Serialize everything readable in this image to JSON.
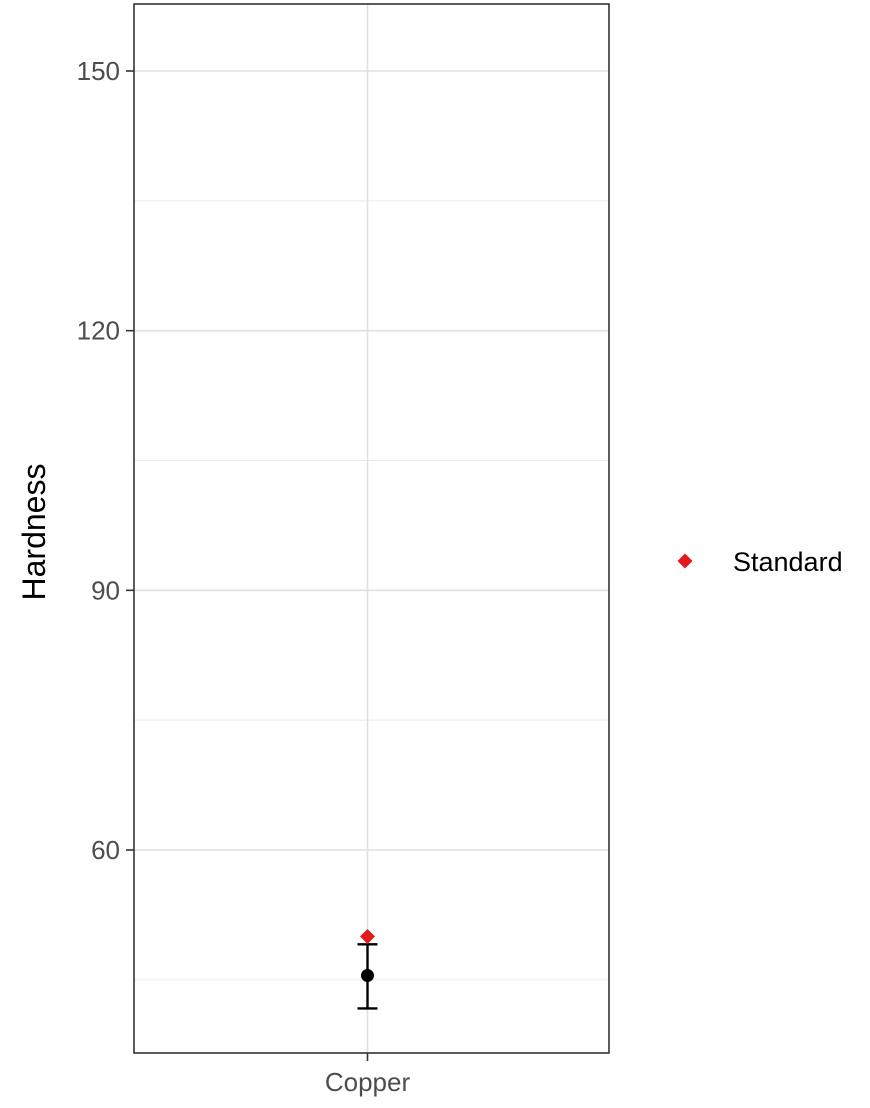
{
  "chart_data": {
    "type": "scatter",
    "title": "",
    "xlabel": "",
    "ylabel": "Hardness",
    "categories": [
      "Copper"
    ],
    "ylim": [
      42,
      158
    ],
    "yticks": [
      60,
      90,
      120,
      150
    ],
    "grid": true,
    "legend_position": "right",
    "series": [
      {
        "name": "",
        "marker": "circle",
        "color": "#000000",
        "values": [
          45.5
        ],
        "error_low": [
          41.7
        ],
        "error_high": [
          49.1
        ]
      },
      {
        "name": "Standard",
        "marker": "diamond",
        "color": "#e31a1c",
        "values": [
          50
        ]
      }
    ]
  }
}
